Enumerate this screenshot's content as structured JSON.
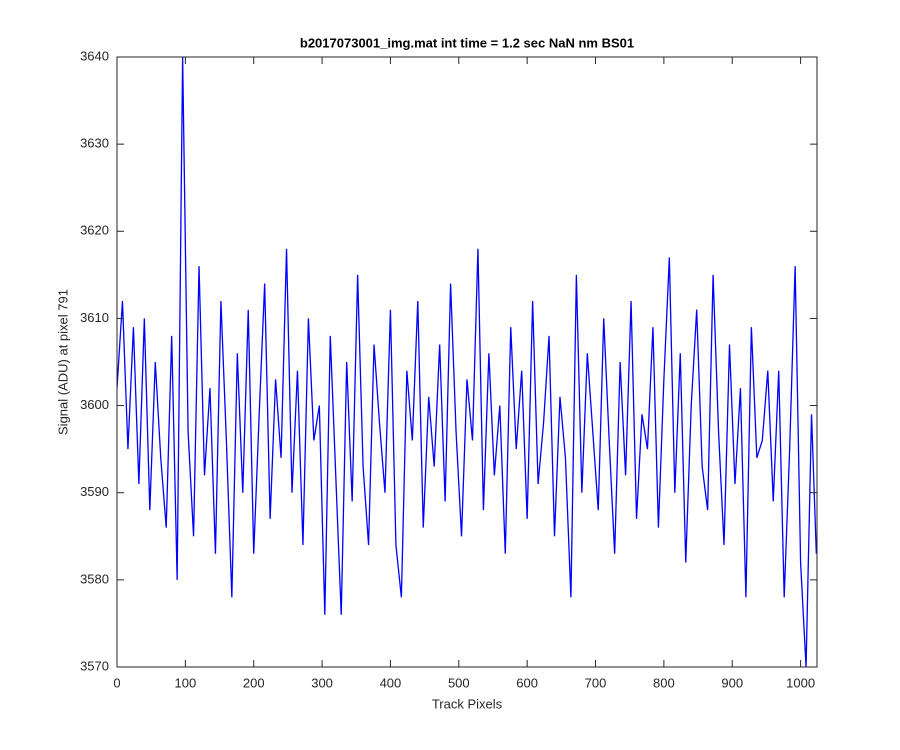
{
  "chart_data": {
    "type": "line",
    "title": "b2017073001_img.mat int time = 1.2 sec  NaN nm BS01",
    "x_label": "Track Pixels",
    "y_label": "Signal (ADU) at pixel 791",
    "x": [
      0,
      8,
      16,
      24,
      32,
      40,
      48,
      56,
      64,
      72,
      80,
      88,
      96,
      104,
      112,
      120,
      128,
      136,
      144,
      152,
      160,
      168,
      176,
      184,
      192,
      200,
      208,
      216,
      224,
      232,
      240,
      248,
      256,
      264,
      272,
      280,
      288,
      296,
      304,
      312,
      320,
      328,
      336,
      344,
      352,
      360,
      368,
      376,
      384,
      392,
      400,
      408,
      416,
      424,
      432,
      440,
      448,
      456,
      464,
      472,
      480,
      488,
      496,
      504,
      512,
      520,
      528,
      536,
      544,
      552,
      560,
      568,
      576,
      584,
      592,
      600,
      608,
      616,
      624,
      632,
      640,
      648,
      656,
      664,
      672,
      680,
      688,
      696,
      704,
      712,
      720,
      728,
      736,
      744,
      752,
      760,
      768,
      776,
      784,
      792,
      800,
      808,
      816,
      824,
      832,
      840,
      848,
      856,
      864,
      872,
      880,
      888,
      896,
      904,
      912,
      920,
      928,
      936,
      944,
      952,
      960,
      968,
      976,
      984,
      992,
      1000,
      1008,
      1016,
      1023
    ],
    "series": [
      {
        "name": "signal",
        "color": "#0000ff",
        "values": [
          3602,
          3612,
          3595,
          3609,
          3591,
          3610,
          3588,
          3605,
          3594,
          3586,
          3608,
          3580,
          3640,
          3597,
          3585,
          3616,
          3592,
          3602,
          3583,
          3612,
          3596,
          3578,
          3606,
          3590,
          3611,
          3583,
          3599,
          3614,
          3587,
          3603,
          3594,
          3618,
          3590,
          3604,
          3584,
          3610,
          3596,
          3600,
          3576,
          3608,
          3592,
          3576,
          3605,
          3589,
          3615,
          3593,
          3584,
          3607,
          3598,
          3590,
          3611,
          3584,
          3578,
          3604,
          3596,
          3612,
          3586,
          3601,
          3593,
          3607,
          3589,
          3614,
          3597,
          3585,
          3603,
          3596,
          3618,
          3588,
          3606,
          3592,
          3600,
          3583,
          3609,
          3595,
          3604,
          3587,
          3612,
          3591,
          3598,
          3608,
          3585,
          3601,
          3594,
          3578,
          3615,
          3590,
          3606,
          3597,
          3588,
          3610,
          3596,
          3583,
          3605,
          3592,
          3612,
          3587,
          3599,
          3595,
          3609,
          3586,
          3603,
          3617,
          3590,
          3606,
          3582,
          3600,
          3611,
          3593,
          3588,
          3615,
          3597,
          3584,
          3607,
          3591,
          3602,
          3578,
          3609,
          3594,
          3596,
          3604,
          3589,
          3604,
          3578,
          3595,
          3616,
          3582,
          3570,
          3599,
          3583
        ]
      }
    ],
    "xlim": [
      0,
      1024
    ],
    "xticks": [
      0,
      100,
      200,
      300,
      400,
      500,
      600,
      700,
      800,
      900,
      1000
    ],
    "ylim": [
      3570,
      3640
    ],
    "yticks": [
      3570,
      3580,
      3590,
      3600,
      3610,
      3620,
      3630,
      3640
    ],
    "grid": false
  }
}
